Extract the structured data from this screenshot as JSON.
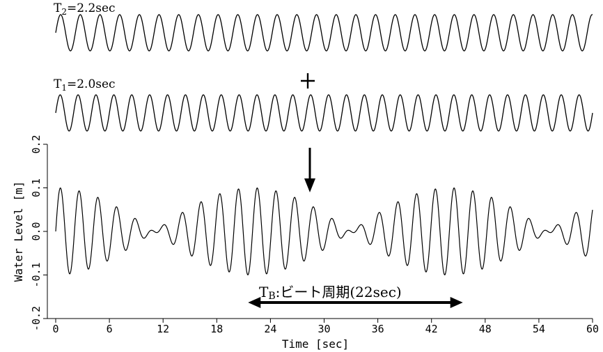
{
  "chart_data": [
    {
      "type": "line",
      "label_main": "T",
      "label_sub": "2",
      "label_rest": "=2.2sec",
      "period": 2.2,
      "amplitude": 0.05,
      "x_range": [
        0,
        60
      ]
    },
    {
      "type": "line",
      "label_main": "T",
      "label_sub": "1",
      "label_rest": "=2.0sec",
      "period": 2.0,
      "amplitude": 0.05,
      "x_range": [
        0,
        60
      ]
    },
    {
      "type": "line",
      "xlabel": "Time [sec]",
      "ylabel": "Water Level [m]",
      "xlim": [
        0,
        60
      ],
      "ylim": [
        -0.2,
        0.2
      ],
      "x_ticks": [
        "0",
        "6",
        "12",
        "18",
        "24",
        "30",
        "36",
        "42",
        "48",
        "54",
        "60"
      ],
      "y_ticks": [
        "-0.2",
        "-0.1",
        "0.0",
        "0.1",
        "0.2"
      ],
      "series": [
        {
          "components": [
            {
              "period": 2.0,
              "amplitude": 0.05
            },
            {
              "period": 2.2,
              "amplitude": 0.05
            }
          ]
        }
      ],
      "annotation": {
        "main": "T",
        "sub": "B",
        "rest": ":ビート周期(22sec)",
        "x_from": 21.5,
        "x_to": 45.5
      }
    }
  ],
  "operators": {
    "plus": "+",
    "arrow": "down-arrow"
  }
}
